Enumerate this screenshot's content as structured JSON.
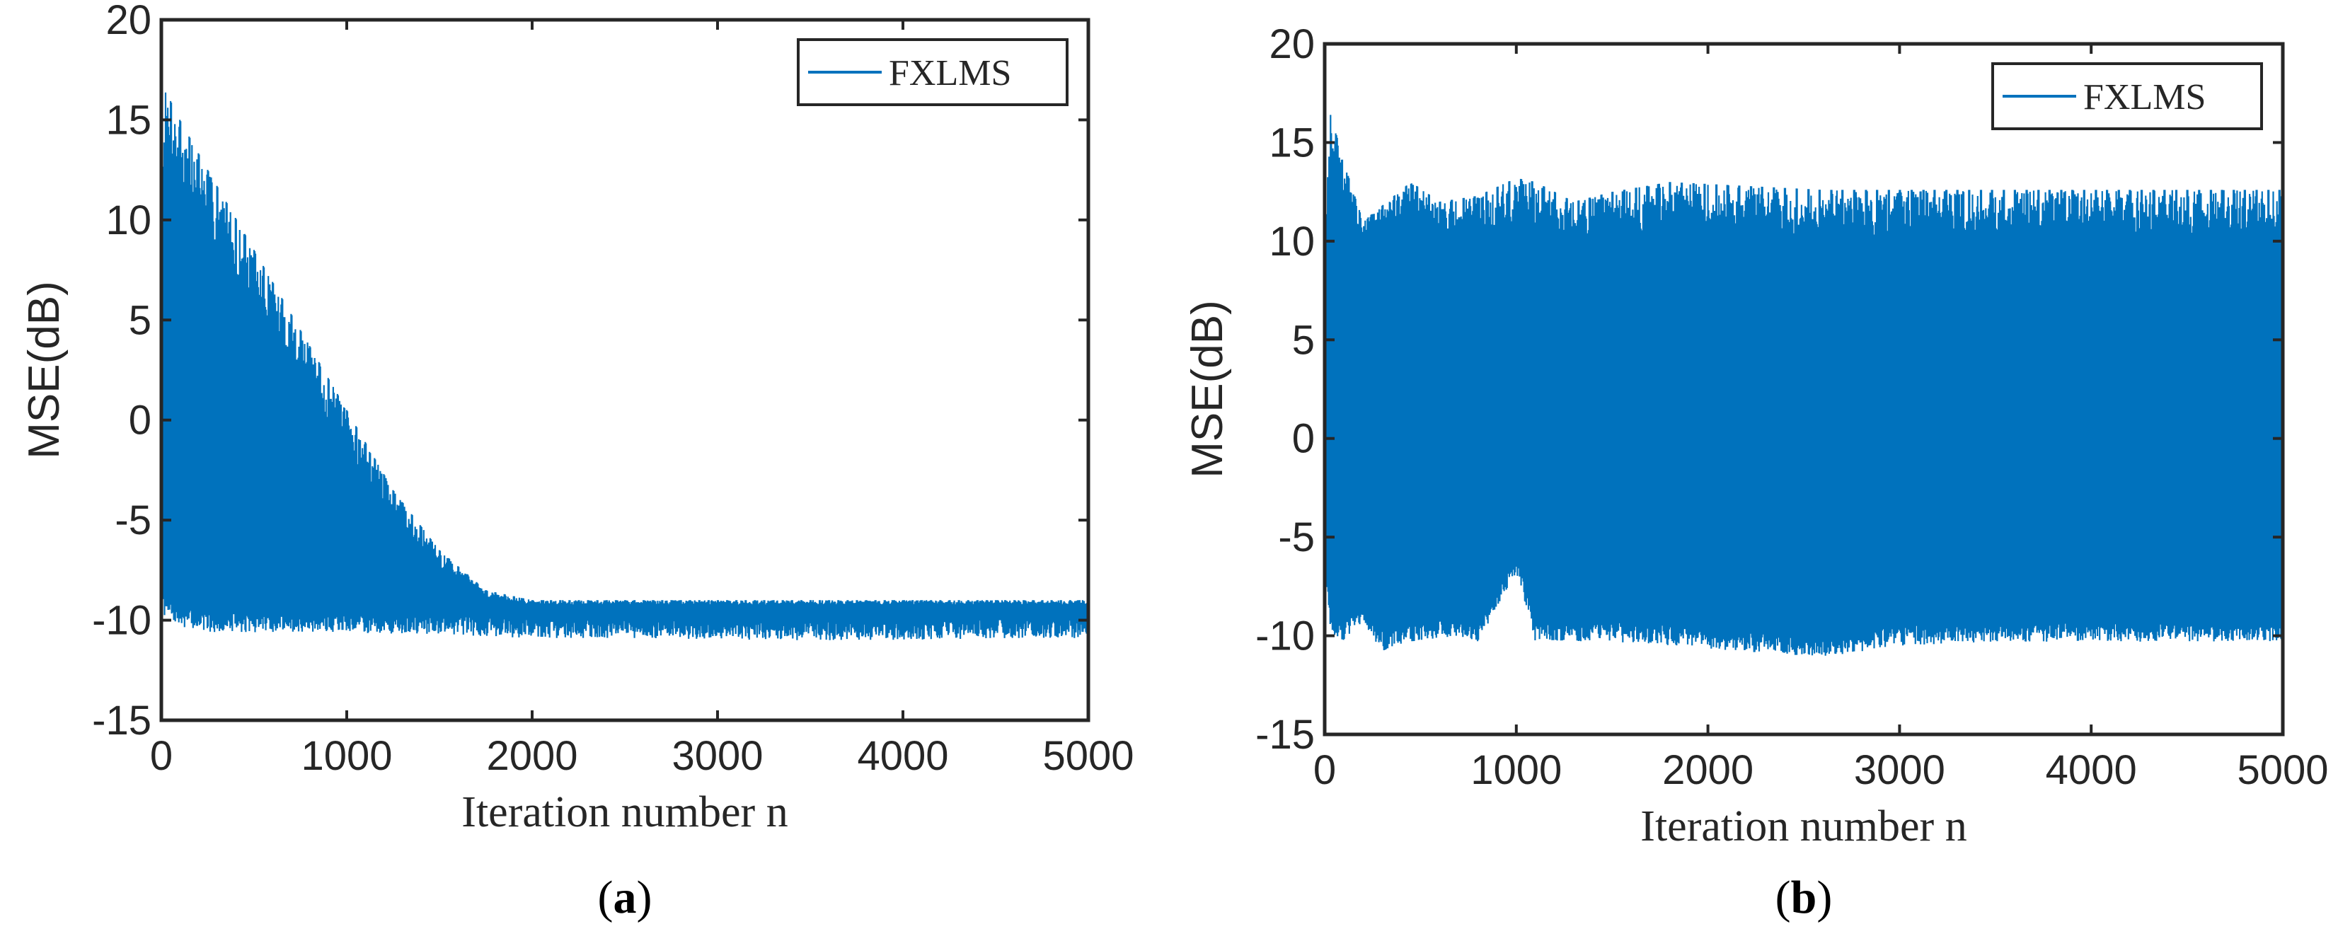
{
  "chart_data": [
    {
      "type": "line",
      "panel_label": {
        "open": "(",
        "letter": "a",
        "close": ")"
      },
      "title": "",
      "xlabel": "Iteration number n",
      "ylabel": "MSE(dB)",
      "xlim": [
        0,
        5000
      ],
      "ylim": [
        -15,
        20
      ],
      "xticks": [
        0,
        1000,
        2000,
        3000,
        4000,
        5000
      ],
      "yticks": [
        -15,
        -10,
        -5,
        0,
        5,
        10,
        15,
        20
      ],
      "xtick_labels": [
        "0",
        "1000",
        "2000",
        "3000",
        "4000",
        "5000"
      ],
      "ytick_labels": [
        "-15",
        "-10",
        "-5",
        "0",
        "5",
        "10",
        "15",
        "20"
      ],
      "legend": {
        "entries": [
          "FXLMS"
        ],
        "location": "top-right"
      },
      "series": [
        {
          "name": "FXLMS",
          "color": "#0072bd",
          "envelope_x": [
            0,
            20,
            100,
            250,
            500,
            750,
            1000,
            1250,
            1500,
            1750,
            2000,
            2500,
            3000,
            3500,
            4000,
            4500,
            5000
          ],
          "upper": [
            11,
            16.5,
            15,
            12.5,
            8.5,
            4.5,
            0.5,
            -3.5,
            -6.5,
            -8.5,
            -9.0,
            -9.0,
            -9.0,
            -9.0,
            -9.0,
            -9.0,
            -9.0
          ],
          "dense_band_top": [
            10.5,
            10.5,
            7.5,
            5.0,
            2.0,
            -1.0,
            -4.0,
            -6.5,
            -8.5,
            -9.3,
            -9.5,
            -9.5,
            -9.5,
            -9.5,
            -9.5,
            -9.5,
            -9.5
          ],
          "lower": [
            -9.5,
            -9.5,
            -10.0,
            -10.3,
            -10.3,
            -10.3,
            -10.3,
            -10.4,
            -10.4,
            -10.5,
            -10.6,
            -10.6,
            -10.7,
            -10.7,
            -10.7,
            -10.6,
            -10.6
          ],
          "spike_period": 50
        }
      ]
    },
    {
      "type": "line",
      "panel_label": {
        "open": "(",
        "letter": "b",
        "close": ")"
      },
      "title": "",
      "xlabel": "Iteration number n",
      "ylabel": "MSE(dB)",
      "xlim": [
        0,
        5000
      ],
      "ylim": [
        -15,
        20
      ],
      "xticks": [
        0,
        1000,
        2000,
        3000,
        4000,
        5000
      ],
      "yticks": [
        -15,
        -10,
        -5,
        0,
        5,
        10,
        15,
        20
      ],
      "xtick_labels": [
        "0",
        "1000",
        "2000",
        "3000",
        "4000",
        "5000"
      ],
      "ytick_labels": [
        "-15",
        "-10",
        "-5",
        "0",
        "5",
        "10",
        "15",
        "20"
      ],
      "legend": {
        "entries": [
          "FXLMS"
        ],
        "location": "top-right"
      },
      "series": [
        {
          "name": "FXLMS",
          "color": "#0072bd",
          "envelope_x": [
            0,
            30,
            100,
            200,
            300,
            450,
            600,
            800,
            1000,
            1100,
            1300,
            1500,
            1800,
            2200,
            2600,
            3000,
            3500,
            4000,
            4500,
            5000
          ],
          "upper": [
            10,
            16.5,
            14.0,
            11.0,
            11.8,
            13.0,
            12.0,
            12.3,
            13.2,
            13.0,
            12.0,
            12.5,
            13.0,
            12.8,
            12.6,
            12.6,
            12.6,
            12.6,
            12.6,
            12.6
          ],
          "dense_band_top": [
            9.0,
            10.0,
            9.5,
            9.5,
            10.0,
            9.0,
            8.5,
            7.5,
            7.5,
            8.0,
            8.0,
            7.5,
            7.5,
            7.5,
            7.5,
            7.5,
            7.5,
            7.5,
            7.5,
            7.5
          ],
          "dense_band_bottom": [
            -4.0,
            -5.0,
            -6.5,
            -6.5,
            -6.5,
            -6.5,
            -6.5,
            -6.5,
            -6.5,
            -6.5,
            -6.5,
            -6.5,
            -6.5,
            -6.5,
            -6.5,
            -6.5,
            -6.5,
            -6.5,
            -6.5,
            -6.5
          ],
          "lower": [
            -6.0,
            -9.5,
            -10.0,
            -9.0,
            -10.5,
            -10.0,
            -9.8,
            -10.0,
            -6.5,
            -10.0,
            -10.0,
            -10.0,
            -10.2,
            -10.5,
            -10.8,
            -10.2,
            -10.0,
            -10.0,
            -10.0,
            -10.0
          ],
          "spike_period": 60
        }
      ]
    }
  ]
}
